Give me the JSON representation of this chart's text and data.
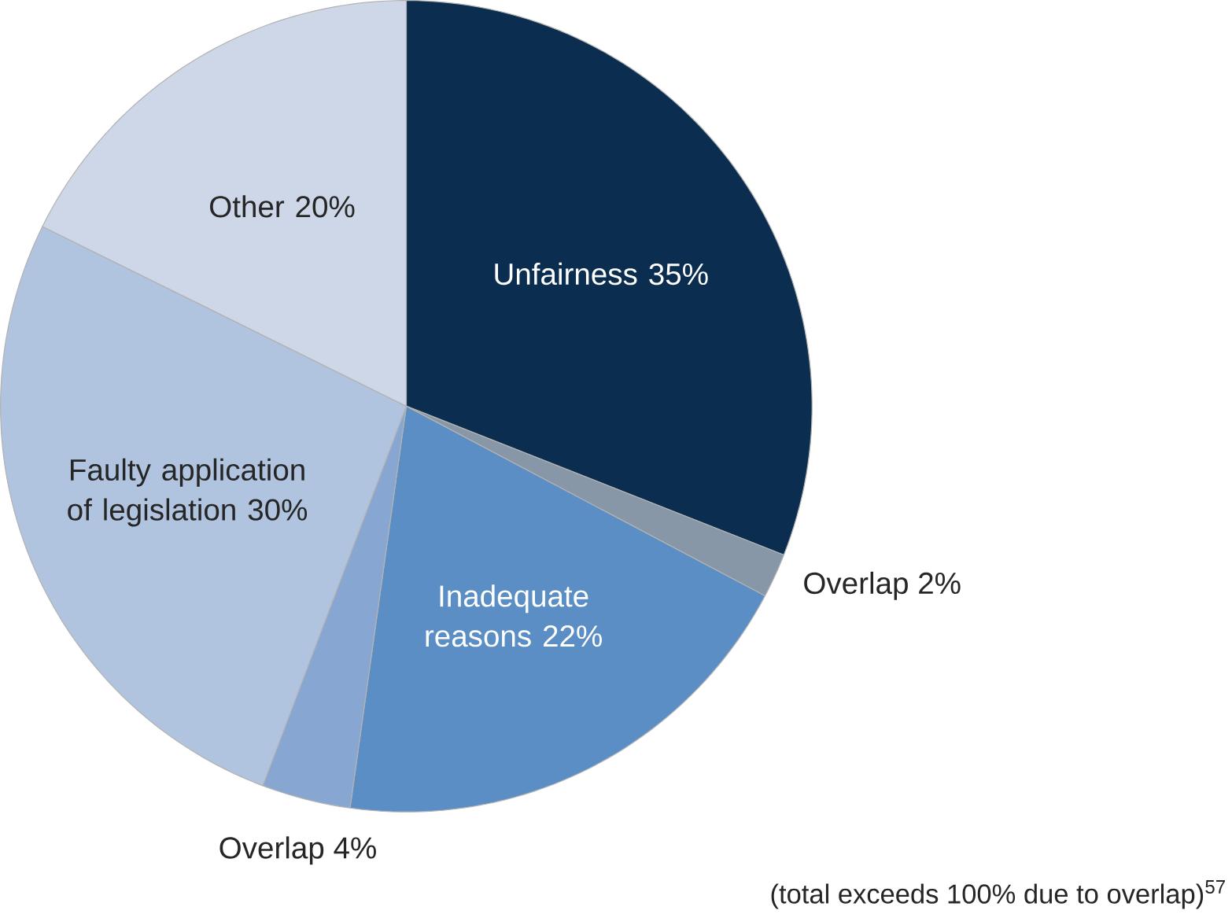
{
  "chart_data": {
    "type": "pie",
    "categories": [
      "Unfairness",
      "Overlap",
      "Inadequate reasons",
      "Overlap",
      "Faulty application of legislation",
      "Other"
    ],
    "values": [
      35,
      2,
      22,
      4,
      30,
      20
    ],
    "value_labels": [
      "35%",
      "2%",
      "22%",
      "4%",
      "30%",
      "20%"
    ],
    "colors": [
      "#0b2d4f",
      "#8797a8",
      "#5b8ec4",
      "#88a6d2",
      "#b0c3df",
      "#cdd7e8"
    ],
    "annotations": [
      "(total exceeds 100% due to overlap)$^{57}$"
    ]
  }
}
